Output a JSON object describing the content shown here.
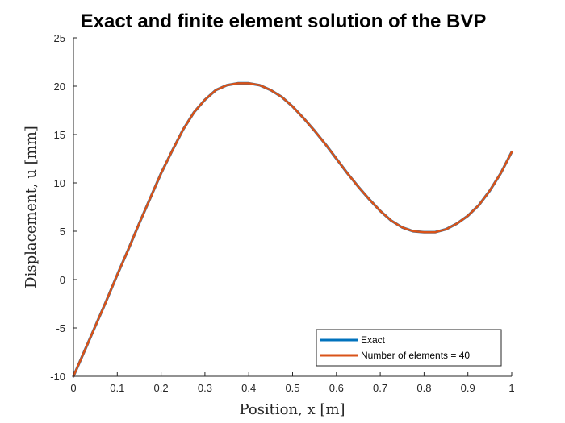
{
  "chart_data": {
    "type": "line",
    "title": "Exact and finite element solution of the BVP",
    "xlabel": "Position, x [m]",
    "ylabel": "Displacement, u [mm]",
    "xlim": [
      0,
      1
    ],
    "ylim": [
      -10,
      25
    ],
    "xticks": [
      "0",
      "0.1",
      "0.2",
      "0.3",
      "0.4",
      "0.5",
      "0.6",
      "0.7",
      "0.8",
      "0.9",
      "1"
    ],
    "yticks": [
      "-10",
      "-5",
      "0",
      "5",
      "10",
      "15",
      "20",
      "25"
    ],
    "grid": false,
    "legend_position": "bottom-right",
    "x": [
      0,
      0.025,
      0.05,
      0.075,
      0.1,
      0.125,
      0.15,
      0.175,
      0.2,
      0.225,
      0.25,
      0.275,
      0.3,
      0.325,
      0.35,
      0.375,
      0.4,
      0.425,
      0.45,
      0.475,
      0.5,
      0.525,
      0.55,
      0.575,
      0.6,
      0.625,
      0.65,
      0.675,
      0.7,
      0.725,
      0.75,
      0.775,
      0.8,
      0.825,
      0.85,
      0.875,
      0.9,
      0.925,
      0.95,
      0.975,
      1
    ],
    "series": [
      {
        "name": "Exact",
        "color": "#0072BD",
        "values": [
          -10,
          -7.4,
          -4.8,
          -2.2,
          0.5,
          3.1,
          5.8,
          8.4,
          11.0,
          13.3,
          15.5,
          17.3,
          18.6,
          19.6,
          20.1,
          20.3,
          20.3,
          20.1,
          19.6,
          18.9,
          17.9,
          16.7,
          15.4,
          14.0,
          12.5,
          11.0,
          9.6,
          8.3,
          7.1,
          6.1,
          5.4,
          5.0,
          4.9,
          4.9,
          5.2,
          5.8,
          6.6,
          7.7,
          9.2,
          11.0,
          13.2
        ]
      },
      {
        "name": "Number of elements = 40",
        "color": "#D95319",
        "values": [
          -10,
          -7.4,
          -4.8,
          -2.2,
          0.5,
          3.1,
          5.8,
          8.4,
          11.0,
          13.3,
          15.5,
          17.3,
          18.6,
          19.6,
          20.1,
          20.3,
          20.3,
          20.1,
          19.6,
          18.9,
          17.9,
          16.7,
          15.4,
          14.0,
          12.5,
          11.0,
          9.6,
          8.3,
          7.1,
          6.1,
          5.4,
          5.0,
          4.9,
          4.9,
          5.2,
          5.8,
          6.6,
          7.7,
          9.2,
          11.0,
          13.2
        ]
      }
    ]
  }
}
